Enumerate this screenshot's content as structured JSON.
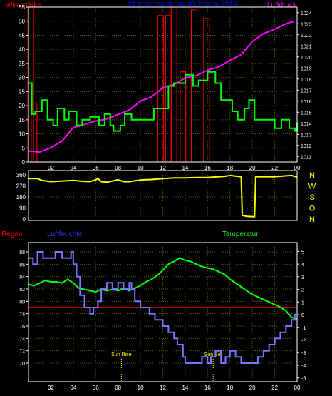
{
  "header": {
    "left_label": "Windstärke",
    "center_label": "24 hour graph day  03 Januar 2019",
    "right_label": "Luftdruck"
  },
  "colors": {
    "bg": "#000000",
    "grid": "#5a5a00",
    "frame": "#ffffff",
    "axis_text": "#ffffff",
    "wind": "#00ff00",
    "gust": "#ff0000",
    "pressure": "#ff00ff",
    "direction": "#ffff00",
    "humidity": "#7777ff",
    "temperature": "#00ff00",
    "rain": "#ff0000",
    "sun_marker": "#ffff00",
    "left_label": "#ff0000",
    "center_label": "#0000ff",
    "humidity_label": "#3333ff",
    "temperature_label": "#00ff00"
  },
  "chart_data": [
    {
      "id": "wind-pressure",
      "type": "line",
      "title": "",
      "x_ticks": [
        "02",
        "04",
        "06",
        "08",
        "10",
        "12",
        "14",
        "16",
        "18",
        "20",
        "22",
        "00"
      ],
      "x_range": [
        0,
        24
      ],
      "left_axis": {
        "label": "Windstärke",
        "range": [
          0,
          55
        ],
        "ticks": [
          0,
          5,
          10,
          15,
          20,
          25,
          30,
          35,
          40,
          45,
          50,
          55
        ]
      },
      "right_axis": {
        "label": "Luftdruck",
        "range": [
          1010.5,
          1024.5
        ],
        "ticks": [
          1011,
          1012,
          1013,
          1014,
          1015,
          1016,
          1017,
          1018,
          1019,
          1020,
          1021,
          1022,
          1023,
          1024
        ]
      },
      "grid": true,
      "series": [
        {
          "name": "Windstärke",
          "axis": "left",
          "step": true,
          "x": [
            0,
            0.3,
            0.6,
            1.2,
            1.7,
            2.2,
            2.6,
            3.2,
            3.6,
            4.3,
            4.8,
            5.5,
            6.3,
            6.8,
            7.3,
            7.6,
            8.2,
            8.6,
            9.2,
            10.5,
            11.2,
            12.5,
            13.0,
            14.0,
            14.7,
            15.2,
            16.0,
            16.7,
            17.2,
            18.2,
            18.7,
            19.3,
            19.7,
            20.2,
            20.6,
            22.0,
            22.6,
            23.3,
            23.8,
            24
          ],
          "y": [
            28,
            17,
            18,
            22,
            15,
            13,
            19,
            15,
            18,
            13,
            15,
            16,
            13,
            17,
            13,
            11,
            13,
            17,
            15,
            15,
            19,
            27,
            28,
            31,
            27,
            29,
            32,
            28,
            22,
            18,
            15,
            19,
            22,
            15,
            15,
            12,
            15,
            12,
            11,
            14
          ]
        },
        {
          "name": "Windböen",
          "axis": "left",
          "bars": true,
          "x": [
            0.2,
            0.5,
            11.8,
            12.5,
            13.0,
            13.8,
            14.8,
            15.9
          ],
          "y": [
            55,
            21,
            52,
            52,
            55,
            32,
            54,
            51
          ]
        },
        {
          "name": "Luftdruck",
          "axis": "right",
          "x": [
            0,
            1,
            2,
            3,
            4,
            5,
            6,
            7,
            8,
            9,
            10,
            11,
            12,
            13,
            14,
            15,
            16,
            17,
            18,
            19,
            20,
            21,
            22,
            23,
            23.7
          ],
          "y": [
            1011.5,
            1011.4,
            1011.8,
            1012.4,
            1013.6,
            1013.9,
            1014.2,
            1014.4,
            1014.8,
            1015.2,
            1016.0,
            1016.4,
            1017.2,
            1017.5,
            1018.1,
            1018.3,
            1018.8,
            1019.1,
            1019.7,
            1020.2,
            1021.4,
            1022.1,
            1022.5,
            1023.0,
            1023.2
          ]
        }
      ]
    },
    {
      "id": "wind-direction",
      "type": "line",
      "title": "",
      "x_range": [
        0,
        24
      ],
      "left_axis": {
        "range": [
          0,
          360
        ],
        "ticks": [
          0,
          90,
          180,
          270,
          360
        ]
      },
      "right_axis": {
        "ticks": [
          "N",
          "W",
          "S",
          "O",
          "N"
        ]
      },
      "grid": true,
      "series": [
        {
          "name": "Windrichtung",
          "x": [
            0,
            0.8,
            1.2,
            2,
            3,
            4,
            4.8,
            5.5,
            6,
            6.2,
            6.5,
            7,
            7.5,
            8,
            8.5,
            9,
            10,
            10.3,
            11,
            12,
            13,
            14,
            15,
            16,
            17,
            17.5,
            18,
            18.5,
            19.0,
            19.1,
            19.5,
            20.0,
            20.2,
            20.3,
            21,
            22,
            23,
            23.5,
            24
          ],
          "y": [
            330,
            330,
            315,
            305,
            310,
            315,
            308,
            305,
            320,
            330,
            305,
            300,
            310,
            320,
            305,
            305,
            318,
            320,
            322,
            330,
            335,
            335,
            338,
            338,
            345,
            348,
            355,
            350,
            345,
            30,
            22,
            20,
            20,
            345,
            345,
            345,
            352,
            355,
            342
          ]
        }
      ]
    },
    {
      "id": "humidity-temperature",
      "type": "line",
      "title": "",
      "labels": {
        "rain": "Regen",
        "humidity": "Luftfeuchte",
        "temperature": "Temperatur"
      },
      "x_ticks": [
        "02",
        "04",
        "06",
        "08",
        "10",
        "12",
        "14",
        "16",
        "18",
        "20",
        "22",
        "00"
      ],
      "x_range": [
        0,
        24
      ],
      "left_axis": {
        "range": [
          67,
          89.5
        ],
        "ticks": [
          70,
          72,
          74,
          76,
          78,
          80,
          82,
          84,
          86,
          88
        ]
      },
      "right_axis": {
        "range": [
          -5.3,
          5.7
        ],
        "ticks": [
          -5,
          -4,
          -3,
          -2,
          -1,
          0,
          1,
          2,
          3,
          4,
          5
        ]
      },
      "grid": true,
      "annotations": [
        {
          "label": "Sun Rise",
          "x": 8.3
        },
        {
          "label": "Sun Set",
          "x": 16.5
        }
      ],
      "series": [
        {
          "name": "Luftfeuchte",
          "axis": "left",
          "step": true,
          "x": [
            0,
            0.4,
            0.8,
            1.3,
            2,
            2.4,
            3,
            3.8,
            4.0,
            4.3,
            4.6,
            5,
            5.5,
            5.8,
            6.2,
            6.5,
            7,
            7.5,
            8,
            8.5,
            9,
            9.2,
            9.5,
            10,
            10.8,
            11.3,
            12,
            12.5,
            13,
            13.3,
            13.8,
            14,
            15,
            15.5,
            16,
            16.3,
            16.7,
            17,
            17.2,
            17.6,
            18,
            18.5,
            19,
            19.5,
            20,
            20.5,
            21,
            21.5,
            22,
            22.5,
            23,
            23.5,
            23.8
          ],
          "y": [
            87,
            86,
            88,
            87,
            87,
            88,
            87,
            88,
            86,
            84,
            81,
            79,
            78,
            79,
            80,
            82,
            83,
            82,
            83,
            82,
            83,
            82,
            80,
            79,
            78,
            77,
            76,
            75,
            74,
            73,
            71,
            70,
            70,
            71,
            70,
            71,
            72,
            72,
            70,
            71,
            72,
            71,
            70,
            70,
            70,
            71,
            72,
            73,
            74,
            75,
            76,
            77,
            78
          ]
        },
        {
          "name": "Temperatur",
          "axis": "right",
          "x": [
            0,
            0.5,
            1,
            1.5,
            2,
            2.5,
            3,
            3.5,
            4,
            4.5,
            5,
            5.5,
            6,
            6.5,
            7,
            7.5,
            8,
            8.5,
            9,
            9.5,
            10,
            10.5,
            11,
            11.5,
            12,
            12.5,
            13,
            13.5,
            14,
            14.5,
            15,
            15.5,
            16,
            16.5,
            17,
            17.5,
            18,
            18.5,
            19,
            19.5,
            20,
            20.5,
            21,
            21.5,
            22,
            22.5,
            23,
            23.5,
            24
          ],
          "y": [
            2.4,
            2.3,
            2.5,
            2.7,
            2.6,
            2.6,
            2.5,
            2.8,
            2.5,
            2.1,
            2.0,
            1.9,
            1.8,
            2.0,
            1.9,
            2.0,
            1.9,
            2.1,
            1.9,
            2.1,
            2.3,
            2.6,
            2.8,
            3.1,
            3.5,
            4.0,
            4.2,
            4.5,
            4.3,
            4.2,
            4.0,
            3.8,
            3.7,
            3.6,
            3.4,
            3.2,
            2.8,
            2.5,
            2.2,
            1.9,
            1.6,
            1.4,
            1.2,
            1.0,
            0.8,
            0.6,
            0.3,
            -0.2,
            -0.4
          ]
        },
        {
          "name": "Regen",
          "axis": "left",
          "x": [
            0,
            24
          ],
          "y": [
            79,
            79
          ]
        }
      ]
    }
  ]
}
